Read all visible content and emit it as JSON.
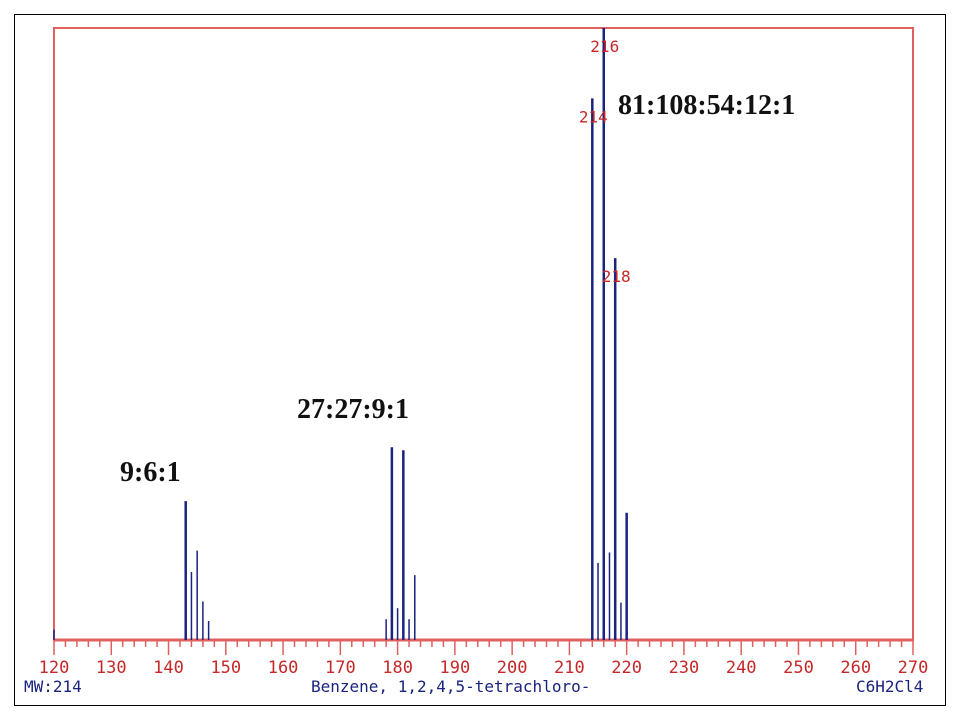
{
  "chart_data": {
    "type": "bar",
    "title": "Benzene, 1,2,4,5-tetrachloro-",
    "xlabel": "",
    "ylabel": "",
    "xlim": [
      120,
      270
    ],
    "ylim": [
      0,
      100
    ],
    "x_ticks": [
      "120",
      "130",
      "140",
      "150",
      "160",
      "170",
      "180",
      "190",
      "200",
      "210",
      "220",
      "230",
      "240",
      "250",
      "260",
      "270"
    ],
    "peaks": [
      {
        "mz": 120,
        "intensity": 1.7
      },
      {
        "mz": 143,
        "intensity": 22.7
      },
      {
        "mz": 144,
        "intensity": 11.1
      },
      {
        "mz": 145,
        "intensity": 14.6
      },
      {
        "mz": 146,
        "intensity": 6.3
      },
      {
        "mz": 147,
        "intensity": 3.1
      },
      {
        "mz": 178,
        "intensity": 3.4
      },
      {
        "mz": 179,
        "intensity": 31.5
      },
      {
        "mz": 180,
        "intensity": 5.2
      },
      {
        "mz": 181,
        "intensity": 31.0
      },
      {
        "mz": 182,
        "intensity": 3.4
      },
      {
        "mz": 183,
        "intensity": 10.6
      },
      {
        "mz": 214,
        "intensity": 88.5
      },
      {
        "mz": 215,
        "intensity": 12.6
      },
      {
        "mz": 216,
        "intensity": 100
      },
      {
        "mz": 217,
        "intensity": 14.3
      },
      {
        "mz": 218,
        "intensity": 62.4
      },
      {
        "mz": 219,
        "intensity": 6.1
      },
      {
        "mz": 220,
        "intensity": 20.8
      }
    ],
    "peak_labels": [
      {
        "mz": 216,
        "text": "216"
      },
      {
        "mz": 214,
        "text": "214"
      },
      {
        "mz": 218,
        "text": "218"
      }
    ],
    "annotations": [
      "9:6:1",
      "27:27:9:1",
      "81:108:54:12:1"
    ]
  },
  "footer": {
    "mw": "MW:214",
    "compound": "Benzene, 1,2,4,5-tetrachloro-",
    "formula": "C6H2Cl4"
  },
  "colors": {
    "frame": "#e06060",
    "peak": "#1a237e",
    "label": "#c62828",
    "footer": "#1a237e",
    "annotation": "#111111"
  }
}
